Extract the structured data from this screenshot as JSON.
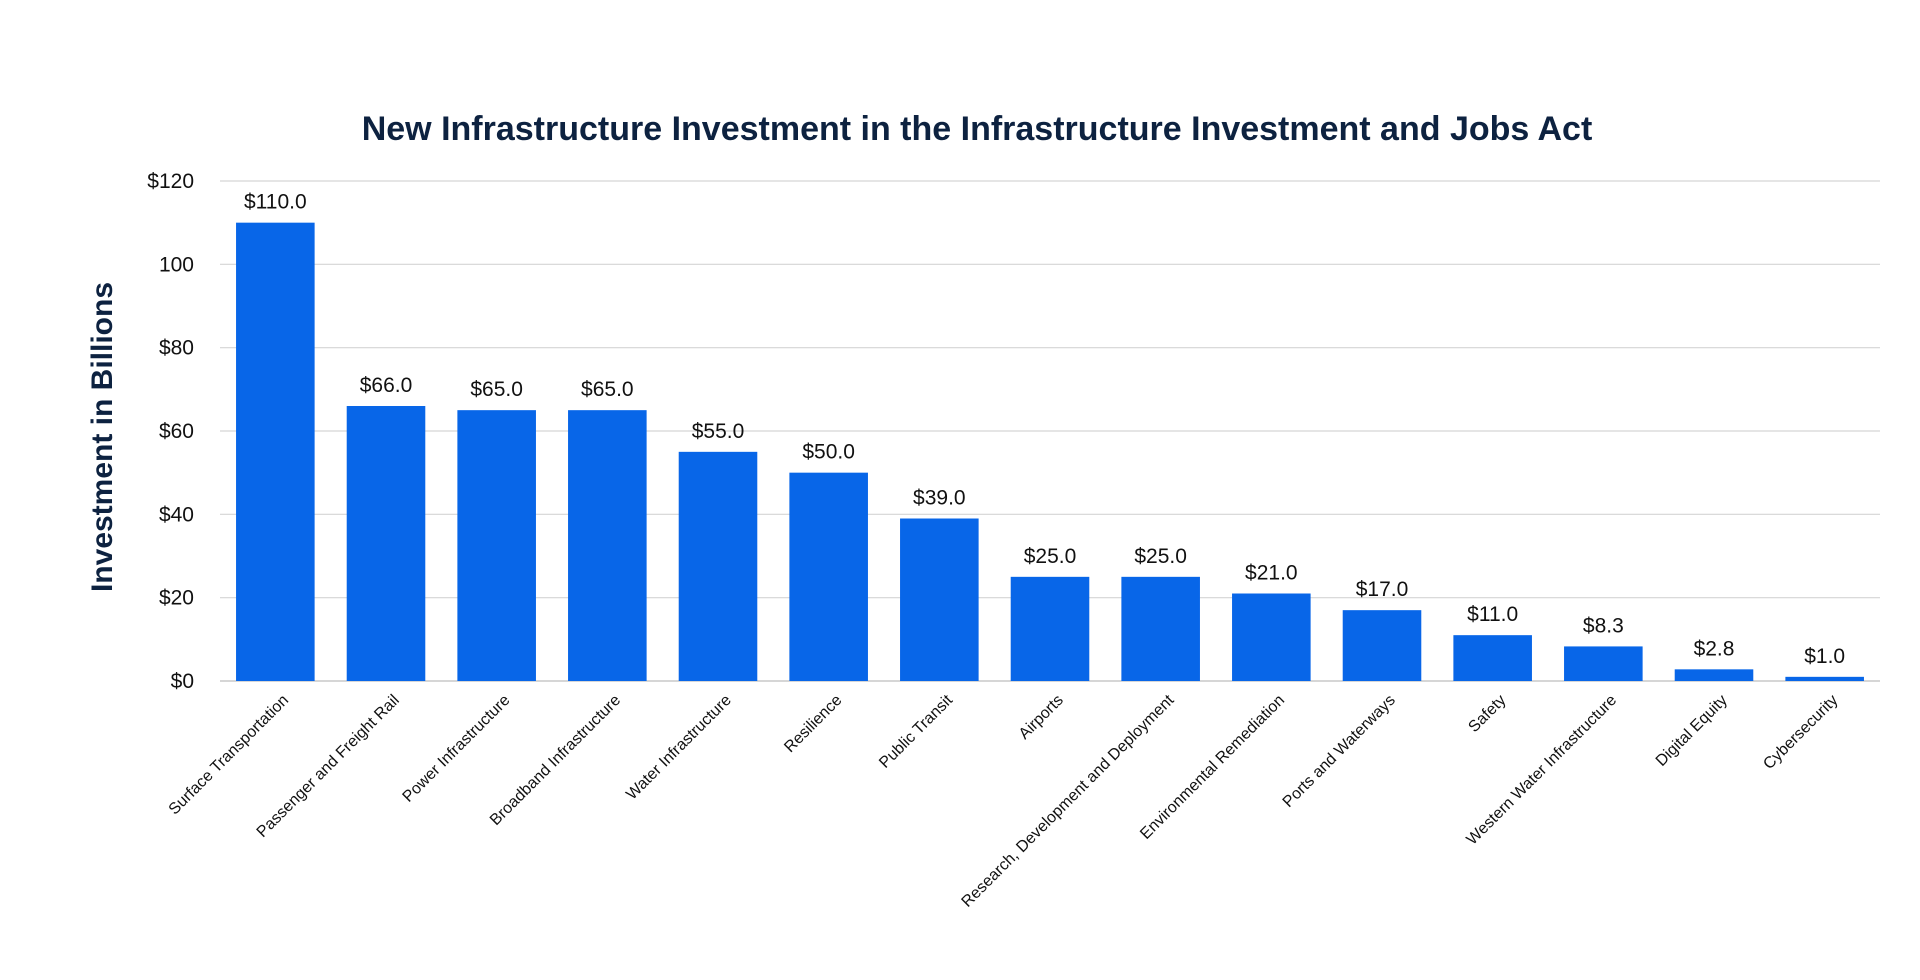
{
  "chart_data": {
    "type": "bar",
    "title": "New Infrastructure Investment in the Infrastructure Investment and Jobs Act",
    "xlabel": "",
    "ylabel": "Investment in Billions",
    "ylim": [
      0,
      120
    ],
    "yticks": [
      0,
      20,
      40,
      60,
      80,
      100,
      120
    ],
    "ytick_labels": [
      "$0",
      "$20",
      "$40",
      "$60",
      "$80",
      "100",
      "$120"
    ],
    "grid": true,
    "bar_color": "#0866e8",
    "categories": [
      "Surface Transportation",
      "Passenger and Freight Rail",
      "Power Infrastructure",
      "Broadband Infrastructure",
      "Water Infrastructure",
      "Resilience",
      "Public Transit",
      "Airports",
      "Research, Development and Deployment",
      "Environmental Remediation",
      "Ports and Waterways",
      "Safety",
      "Western Water Infrastructure",
      "Digital Equity",
      "Cybersecurity"
    ],
    "values": [
      110.0,
      66.0,
      65.0,
      65.0,
      55.0,
      50.0,
      39.0,
      25.0,
      25.0,
      21.0,
      17.0,
      11.0,
      8.3,
      2.8,
      1.0
    ],
    "data_labels": [
      "$110.0",
      "$66.0",
      "$65.0",
      "$65.0",
      "$55.0",
      "$50.0",
      "$39.0",
      "$25.0",
      "$25.0",
      "$21.0",
      "$17.0",
      "$11.0",
      "$8.3",
      "$2.8",
      "$1.0"
    ]
  }
}
